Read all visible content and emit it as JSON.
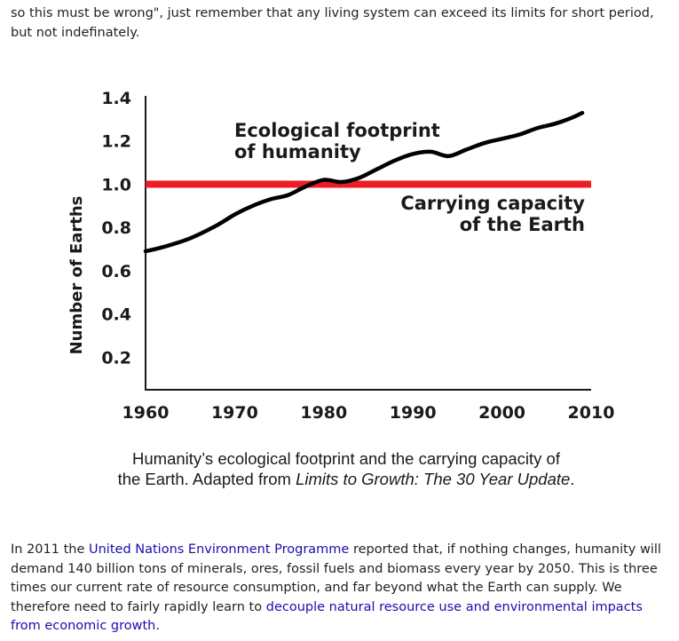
{
  "intro_text": "so this must be wrong\", just remember that any living system can exceed its limits for short period, but not indefinately.",
  "chart_data": {
    "type": "line",
    "ylabel": "Number of Earths",
    "xlabel": "",
    "xlim": [
      1960,
      2010
    ],
    "ylim": [
      0.05,
      1.4
    ],
    "x_ticks": [
      "1960",
      "1970",
      "1980",
      "1990",
      "2000",
      "2010"
    ],
    "y_ticks": [
      "1.4",
      "1.2",
      "1.0",
      "0.8",
      "0.6",
      "0.4",
      "0.2"
    ],
    "series": [
      {
        "name": "Ecological footprint of humanity",
        "color": "#000000",
        "x": [
          1960,
          1962,
          1965,
          1968,
          1970,
          1972,
          1974,
          1976,
          1978,
          1980,
          1982,
          1984,
          1986,
          1988,
          1990,
          1992,
          1994,
          1996,
          1998,
          2000,
          2002,
          2004,
          2006,
          2008,
          2009
        ],
        "y": [
          0.69,
          0.71,
          0.75,
          0.81,
          0.86,
          0.9,
          0.93,
          0.95,
          0.99,
          1.02,
          1.01,
          1.03,
          1.07,
          1.11,
          1.14,
          1.15,
          1.13,
          1.16,
          1.19,
          1.21,
          1.23,
          1.26,
          1.28,
          1.31,
          1.33
        ]
      },
      {
        "name": "Carrying capacity of the Earth",
        "color": "#ee1c25",
        "x": [
          1960,
          2010
        ],
        "y": [
          1.0,
          1.0
        ]
      }
    ],
    "annotations": [
      {
        "lines": [
          "Ecological footprint",
          "of humanity"
        ]
      },
      {
        "lines": [
          "Carrying capacity",
          "of the Earth"
        ]
      }
    ]
  },
  "caption": {
    "line1": "Humanity’s ecological footprint and the carrying capacity of",
    "line2_prefix": "the Earth. Adapted from ",
    "line2_italic": "Limits to Growth: The 30 Year Update",
    "line2_suffix": "."
  },
  "outro": {
    "part1": "In 2011 the ",
    "link1": "United Nations Environment Programme",
    "part2": " reported that, if nothing changes, humanity will demand 140 billion tons of minerals, ores, fossil fuels and biomass every year by 2050. This is three times our current rate of resource consumption, and far beyond what the Earth can supply. We therefore need to fairly rapidly learn to ",
    "link2": "decouple natural resource use and environmental impacts from economic growth",
    "part3": "."
  }
}
